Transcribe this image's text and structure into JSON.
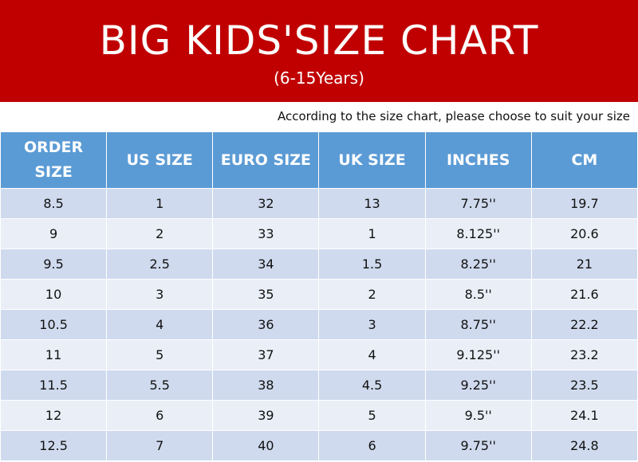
{
  "header": {
    "title": "BIG KIDS'SIZE CHART",
    "subtitle": "(6-15Years)"
  },
  "note": "According to the size chart, please choose to suit your size",
  "table": {
    "columns": [
      "ORDER SIZE",
      "US SIZE",
      "EURO SIZE",
      "UK SIZE",
      "INCHES",
      "CM"
    ],
    "rows": [
      [
        "8.5",
        "1",
        "32",
        "13",
        "7.75''",
        "19.7"
      ],
      [
        "9",
        "2",
        "33",
        "1",
        "8.125''",
        "20.6"
      ],
      [
        "9.5",
        "2.5",
        "34",
        "1.5",
        "8.25''",
        "21"
      ],
      [
        "10",
        "3",
        "35",
        "2",
        "8.5''",
        "21.6"
      ],
      [
        "10.5",
        "4",
        "36",
        "3",
        "8.75''",
        "22.2"
      ],
      [
        "11",
        "5",
        "37",
        "4",
        "9.125''",
        "23.2"
      ],
      [
        "11.5",
        "5.5",
        "38",
        "4.5",
        "9.25''",
        "23.5"
      ],
      [
        "12",
        "6",
        "39",
        "5",
        "9.5''",
        "24.1"
      ],
      [
        "12.5",
        "7",
        "40",
        "6",
        "9.75''",
        "24.8"
      ]
    ]
  }
}
